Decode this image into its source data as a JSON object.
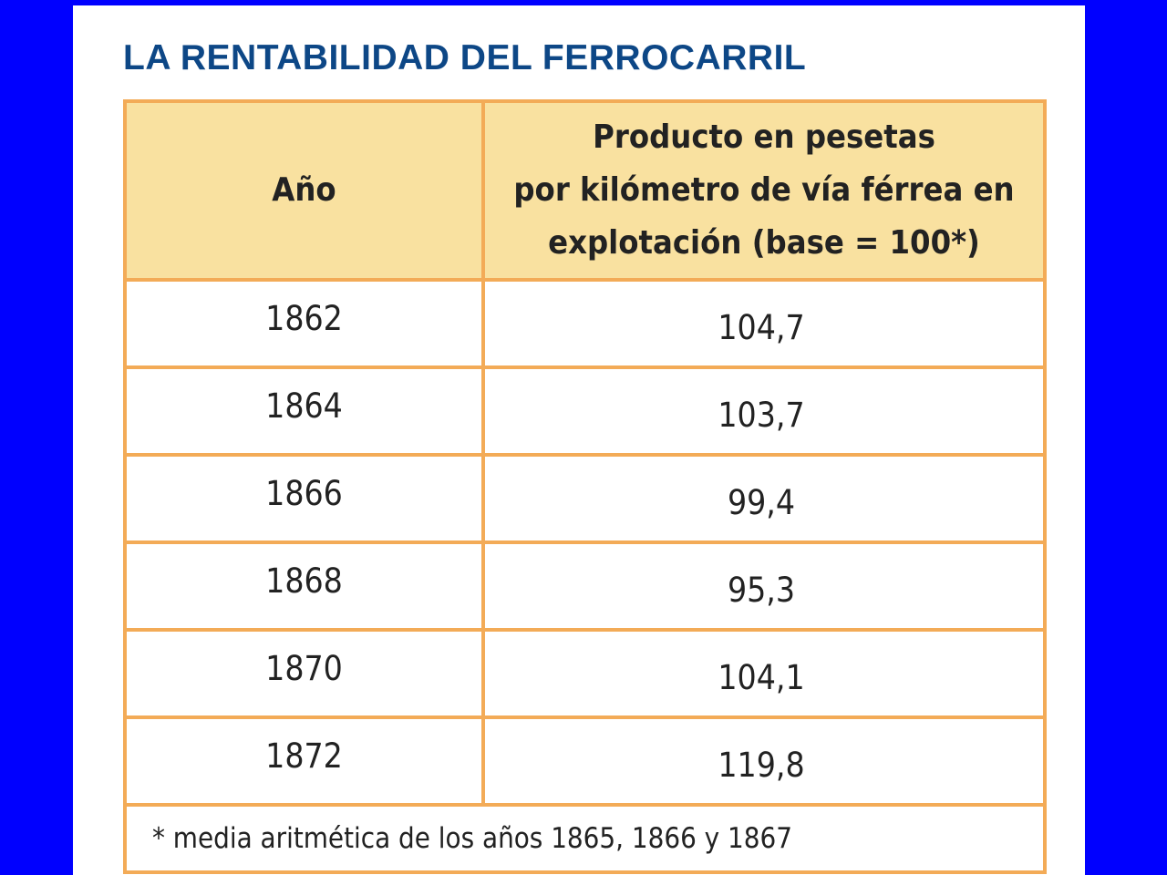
{
  "title": "LA RENTABILIDAD DEL FERROCARRIL",
  "table": {
    "headers": [
      "Año",
      "Producto en pesetas por kilómetro de vía férrea en explotación (base = 100*)"
    ],
    "header_lines": [
      "Producto en pesetas",
      "por kilómetro de vía férrea en",
      "explotación (base = 100*)"
    ],
    "rows": [
      {
        "year": "1862",
        "value": "104,7"
      },
      {
        "year": "1864",
        "value": "103,7"
      },
      {
        "year": "1866",
        "value": "99,4"
      },
      {
        "year": "1868",
        "value": "95,3"
      },
      {
        "year": "1870",
        "value": "104,1"
      },
      {
        "year": "1872",
        "value": "119,8"
      }
    ],
    "footnote": "* media aritmética de los años 1865, 1866 y 1867"
  },
  "colors": {
    "background": "#0000ff",
    "title": "#0d4786",
    "border": "#f3ab57",
    "header_fill": "#f9e1a0"
  }
}
